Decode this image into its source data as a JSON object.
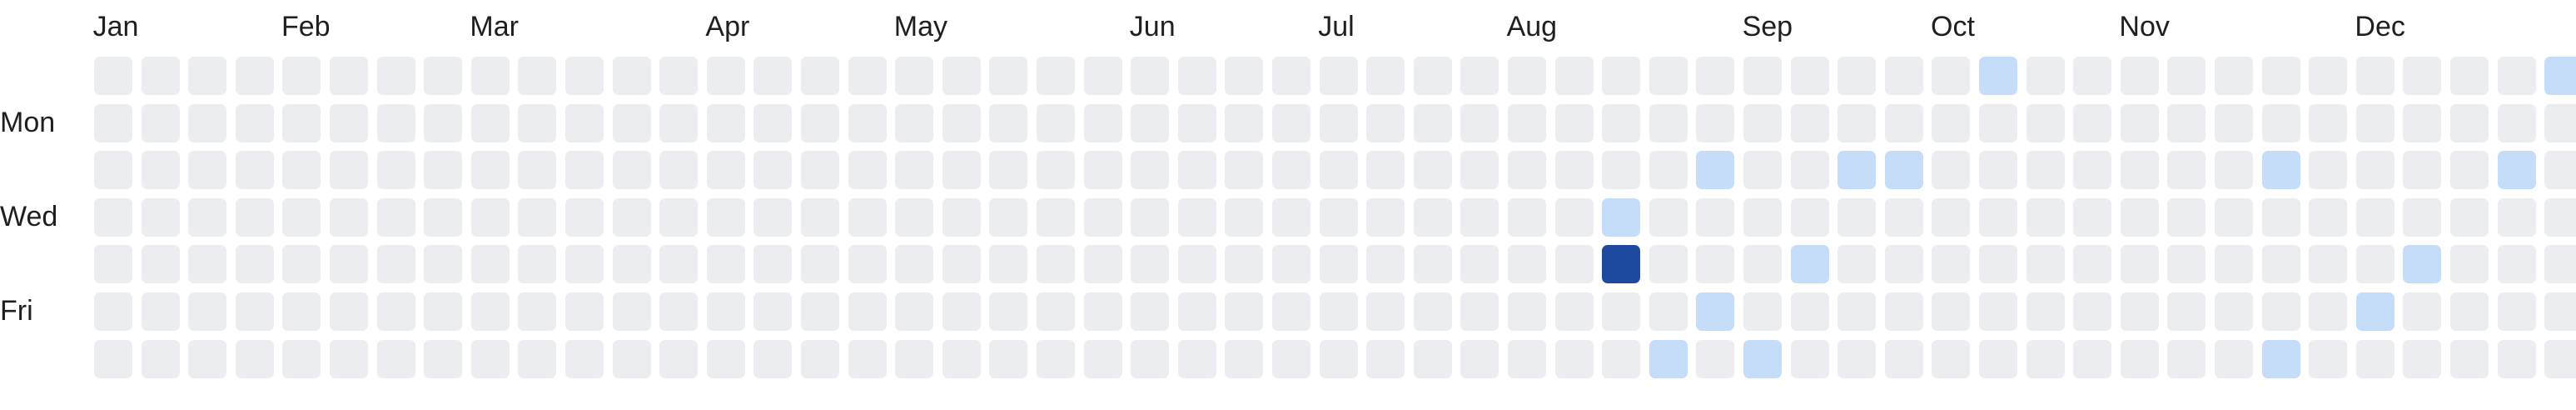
{
  "months": [
    {
      "label": "Jan",
      "week": 1
    },
    {
      "label": "Feb",
      "week": 5
    },
    {
      "label": "Mar",
      "week": 9
    },
    {
      "label": "Apr",
      "week": 14
    },
    {
      "label": "May",
      "week": 18
    },
    {
      "label": "Jun",
      "week": 23
    },
    {
      "label": "Jul",
      "week": 27
    },
    {
      "label": "Aug",
      "week": 31
    },
    {
      "label": "Sep",
      "week": 36
    },
    {
      "label": "Oct",
      "week": 40
    },
    {
      "label": "Nov",
      "week": 44
    },
    {
      "label": "Dec",
      "week": 49
    }
  ],
  "day_labels": [
    {
      "label": "Mon",
      "row": 1
    },
    {
      "label": "Wed",
      "row": 3
    },
    {
      "label": "Fri",
      "row": 5
    }
  ],
  "weeks": 53,
  "days_per_week": 7,
  "levels": {
    "0": "#ebedf0",
    "1": "#c6ddfa",
    "4": "#1d4a9f"
  },
  "active_cells": [
    {
      "week": 40,
      "day": 0,
      "level": 1
    },
    {
      "week": 52,
      "day": 0,
      "level": 1
    },
    {
      "week": 34,
      "day": 2,
      "level": 1
    },
    {
      "week": 37,
      "day": 2,
      "level": 1
    },
    {
      "week": 38,
      "day": 2,
      "level": 1
    },
    {
      "week": 46,
      "day": 2,
      "level": 1
    },
    {
      "week": 51,
      "day": 2,
      "level": 1
    },
    {
      "week": 32,
      "day": 3,
      "level": 1
    },
    {
      "week": 32,
      "day": 4,
      "level": 4
    },
    {
      "week": 36,
      "day": 4,
      "level": 1
    },
    {
      "week": 49,
      "day": 4,
      "level": 1
    },
    {
      "week": 34,
      "day": 5,
      "level": 1
    },
    {
      "week": 48,
      "day": 5,
      "level": 1
    },
    {
      "week": 33,
      "day": 6,
      "level": 1
    },
    {
      "week": 35,
      "day": 6,
      "level": 1
    },
    {
      "week": 46,
      "day": 6,
      "level": 1
    }
  ]
}
